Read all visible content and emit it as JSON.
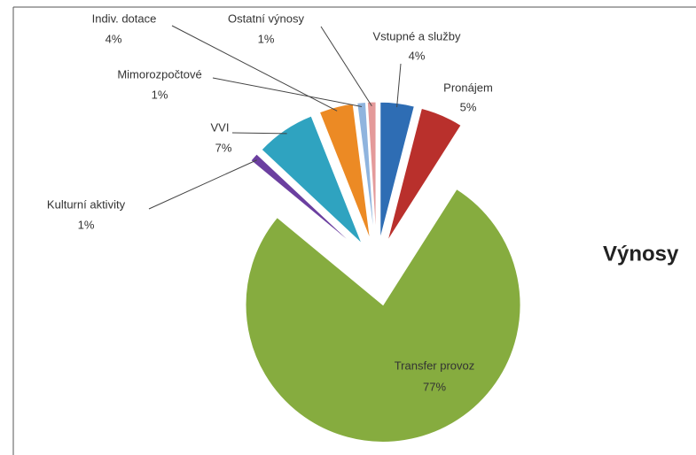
{
  "chart_data": {
    "type": "pie",
    "title": "Výnosy",
    "categories": [
      "Vstupné a služby",
      "Pronájem",
      "Transfer provoz",
      "Kulturní aktivity",
      "VVI",
      "Indiv. dotace",
      "Mimorozpočtové",
      "Ostatní výnosy"
    ],
    "values": [
      4,
      5,
      77,
      1,
      7,
      4,
      1,
      1
    ],
    "value_labels": [
      "4%",
      "5%",
      "77%",
      "1%",
      "7%",
      "4%",
      "1%",
      "1%"
    ],
    "colors": [
      "#2e6db4",
      "#b9302c",
      "#86ac3f",
      "#6b3fa0",
      "#2fa3c0",
      "#ec8a24",
      "#8fb4de",
      "#e49a9a"
    ]
  }
}
